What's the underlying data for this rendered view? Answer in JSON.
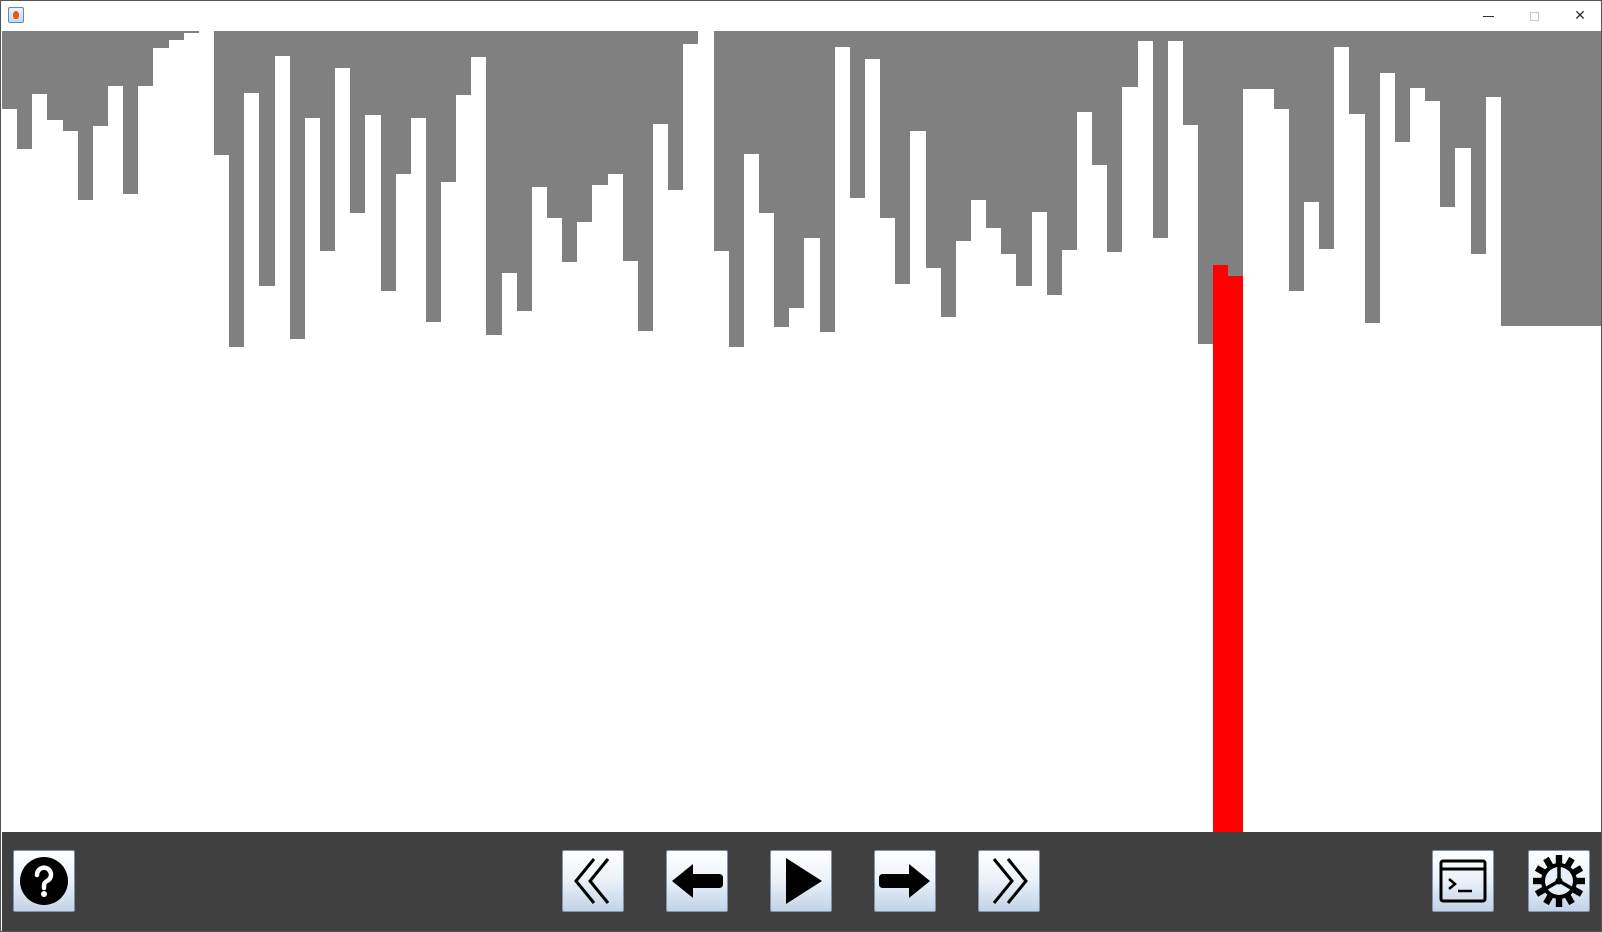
{
  "window": {
    "icons": {
      "app": "java-app-icon",
      "minimize": "minimize-icon",
      "maximize": "maximize-icon",
      "close": "close-icon"
    },
    "close_glyph": "✕"
  },
  "visualization": {
    "background": "#ffffff",
    "bar_color": "#808080",
    "highlight_color": "#ff0000",
    "bar_count": 100,
    "bar_heights": [
      0.097,
      0.147,
      0.079,
      0.111,
      0.125,
      0.211,
      0.118,
      0.069,
      0.203,
      0.069,
      0.021,
      0.011,
      0.003,
      0.0,
      0.155,
      0.394,
      0.077,
      0.318,
      0.031,
      0.385,
      0.109,
      0.275,
      0.046,
      0.227,
      0.105,
      0.324,
      0.178,
      0.108,
      0.363,
      0.189,
      0.08,
      0.032,
      0.38,
      0.302,
      0.349,
      0.195,
      0.234,
      0.288,
      0.239,
      0.192,
      0.178,
      0.287,
      0.374,
      0.116,
      0.198,
      0.016,
      0.0,
      0.275,
      0.394,
      0.153,
      0.227,
      0.369,
      0.346,
      0.259,
      0.376,
      0.02,
      0.208,
      0.035,
      0.234,
      0.316,
      0.125,
      0.296,
      0.357,
      0.262,
      0.211,
      0.246,
      0.279,
      0.318,
      0.226,
      0.33,
      0.273,
      0.101,
      0.167,
      0.276,
      0.07,
      0.012,
      0.259,
      0.012,
      0.117,
      0.391,
      0.292,
      0.306,
      0.073,
      0.072,
      0.097,
      0.325,
      0.213,
      0.272,
      0.02,
      0.103,
      0.364,
      0.052,
      0.138,
      0.071,
      0.088,
      0.22,
      0.146,
      0.278,
      0.082,
      0.368
    ],
    "highlight_indices": [
      80,
      81
    ]
  },
  "toolbar": {
    "buttons": [
      {
        "name": "help-button",
        "icon": "help-icon"
      },
      {
        "name": "fast-backward-button",
        "icon": "double-chevron-left-icon"
      },
      {
        "name": "step-back-button",
        "icon": "arrow-left-icon"
      },
      {
        "name": "play-button",
        "icon": "play-icon"
      },
      {
        "name": "step-forward-button",
        "icon": "arrow-right-icon"
      },
      {
        "name": "fast-forward-button",
        "icon": "double-chevron-right-icon"
      },
      {
        "name": "console-button",
        "icon": "terminal-icon"
      },
      {
        "name": "settings-button",
        "icon": "gear-icon"
      }
    ]
  }
}
